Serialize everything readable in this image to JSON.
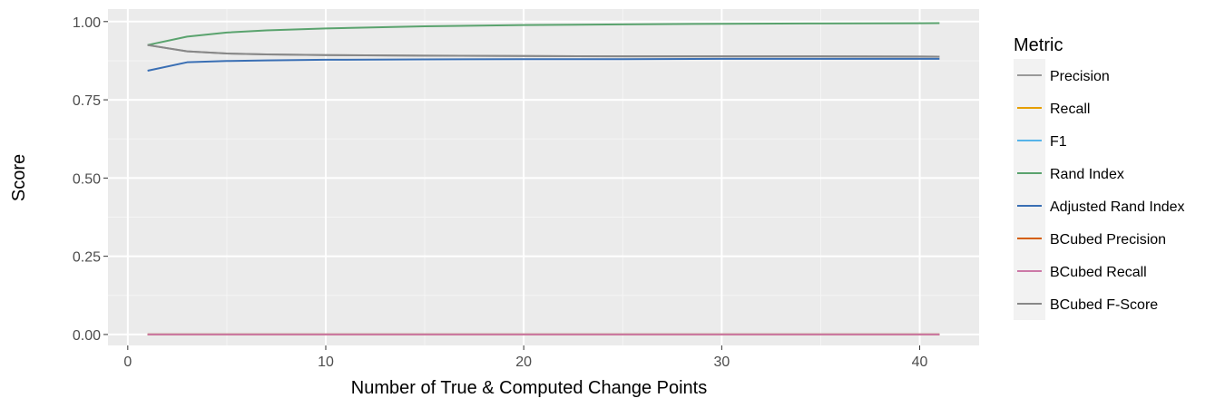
{
  "chart_data": {
    "type": "line",
    "xlabel": "Number of True & Computed Change Points",
    "ylabel": "Score",
    "xlim": [
      -1,
      43
    ],
    "ylim": [
      -0.035,
      1.04
    ],
    "x_ticks": [
      0,
      10,
      20,
      30,
      40
    ],
    "y_ticks": [
      0.0,
      0.25,
      0.5,
      0.75,
      1.0
    ],
    "y_tick_labels": [
      "0.00",
      "0.25",
      "0.50",
      "0.75",
      "1.00"
    ],
    "grid": true,
    "legend": {
      "title": "Metric",
      "position": "right"
    },
    "x": [
      1,
      3,
      5,
      7,
      10,
      15,
      20,
      25,
      30,
      35,
      41
    ],
    "series": [
      {
        "name": "Precision",
        "color": "#999999",
        "values": [
          0.925,
          0.905,
          0.898,
          0.895,
          0.893,
          0.891,
          0.89,
          0.889,
          0.889,
          0.889,
          0.888
        ]
      },
      {
        "name": "Recall",
        "color": "#E69F00",
        "values": [
          0.0,
          0.0,
          0.0,
          0.0,
          0.0,
          0.0,
          0.0,
          0.0,
          0.0,
          0.0,
          0.0
        ]
      },
      {
        "name": "F1",
        "color": "#56B4E9",
        "values": [
          0.0,
          0.0,
          0.0,
          0.0,
          0.0,
          0.0,
          0.0,
          0.0,
          0.0,
          0.0,
          0.0
        ]
      },
      {
        "name": "Rand Index",
        "color": "#5AA36E",
        "values": [
          0.925,
          0.952,
          0.965,
          0.972,
          0.978,
          0.985,
          0.989,
          0.991,
          0.993,
          0.994,
          0.995
        ]
      },
      {
        "name": "Adjusted Rand Index",
        "color": "#3A6FB4",
        "values": [
          0.843,
          0.87,
          0.874,
          0.876,
          0.878,
          0.879,
          0.88,
          0.88,
          0.881,
          0.881,
          0.881
        ]
      },
      {
        "name": "BCubed Precision",
        "color": "#D55E00",
        "values": [
          0.0,
          0.0,
          0.0,
          0.0,
          0.0,
          0.0,
          0.0,
          0.0,
          0.0,
          0.0,
          0.0
        ]
      },
      {
        "name": "BCubed Recall",
        "color": "#CC79A7",
        "values": [
          0.0,
          0.0,
          0.0,
          0.0,
          0.0,
          0.0,
          0.0,
          0.0,
          0.0,
          0.0,
          0.0
        ]
      },
      {
        "name": "BCubed F-Score",
        "color": "#888888",
        "values": [
          0.925,
          0.905,
          0.898,
          0.895,
          0.893,
          0.891,
          0.89,
          0.889,
          0.889,
          0.889,
          0.888
        ]
      }
    ]
  }
}
